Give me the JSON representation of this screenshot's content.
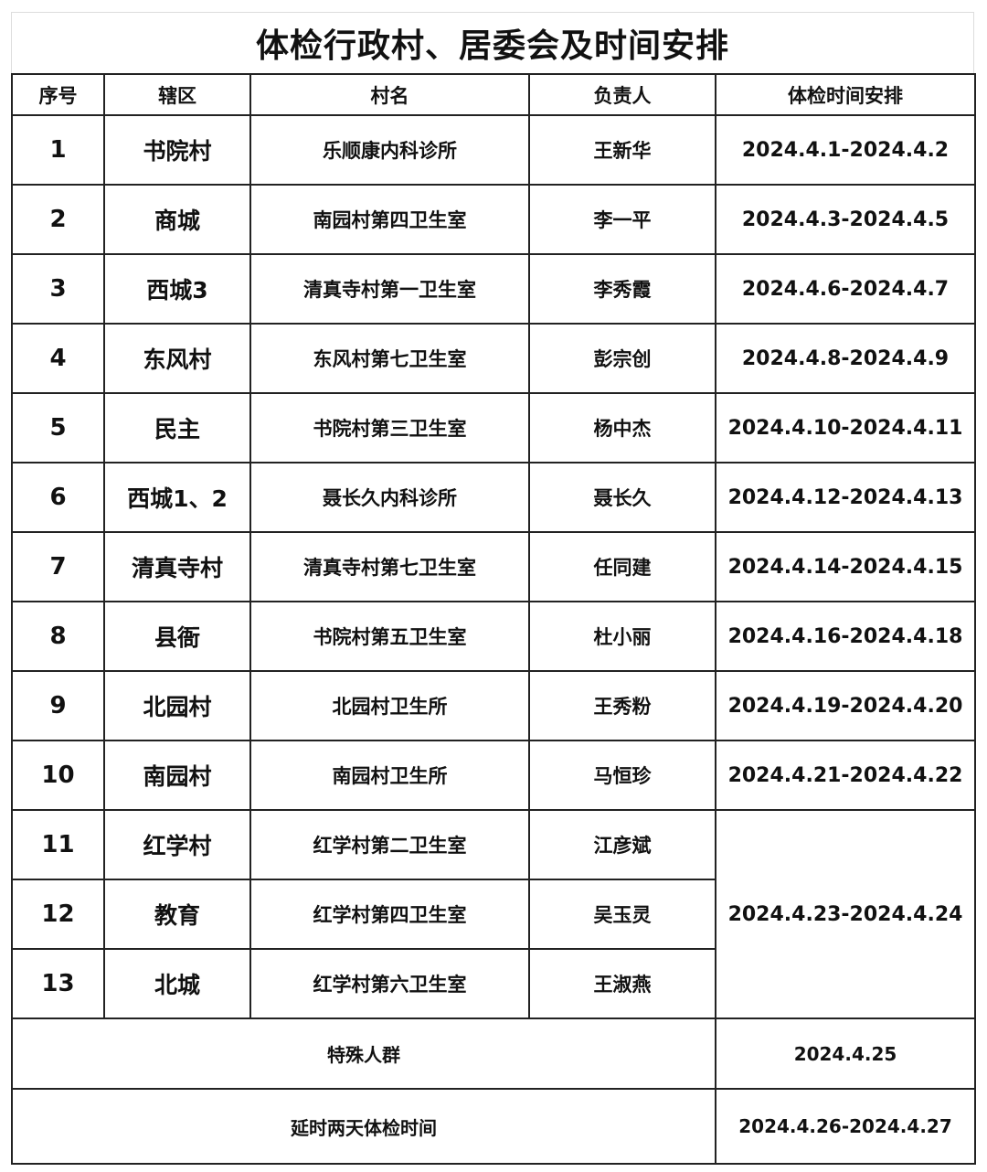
{
  "title": "体检行政村、居委会及时间安排",
  "headers": [
    "序号",
    "辖区",
    "村名",
    "负责人",
    "体检时间安排"
  ],
  "rows": [
    {
      "no": "1",
      "area": "书院村",
      "village": "乐顺康内科诊所",
      "person": "王新华",
      "date": "2024.4.1-2024.4.2"
    },
    {
      "no": "2",
      "area": "商城",
      "village": "南园村第四卫生室",
      "person": "李一平",
      "date": "2024.4.3-2024.4.5"
    },
    {
      "no": "3",
      "area": "西城3",
      "village": "清真寺村第一卫生室",
      "person": "李秀霞",
      "date": "2024.4.6-2024.4.7"
    },
    {
      "no": "4",
      "area": "东风村",
      "village": "东风村第七卫生室",
      "person": "彭宗创",
      "date": "2024.4.8-2024.4.9"
    },
    {
      "no": "5",
      "area": "民主",
      "village": "书院村第三卫生室",
      "person": "杨中杰",
      "date": "2024.4.10-2024.4.11"
    },
    {
      "no": "6",
      "area": "西城1、2",
      "village": "聂长久内科诊所",
      "person": "聂长久",
      "date": "2024.4.12-2024.4.13"
    },
    {
      "no": "7",
      "area": "清真寺村",
      "village": "清真寺村第七卫生室",
      "person": "任同建",
      "date": "2024.4.14-2024.4.15"
    },
    {
      "no": "8",
      "area": "县衙",
      "village": "书院村第五卫生室",
      "person": "杜小丽",
      "date": "2024.4.16-2024.4.18"
    },
    {
      "no": "9",
      "area": "北园村",
      "village": "北园村卫生所",
      "person": "王秀粉",
      "date": "2024.4.19-2024.4.20"
    },
    {
      "no": "10",
      "area": "南园村",
      "village": "南园村卫生所",
      "person": "马恒珍",
      "date": "2024.4.21-2024.4.22"
    },
    {
      "no": "11",
      "area": "红学村",
      "village": "红学村第二卫生室",
      "person": "江彦斌",
      "date": "2024.4.23-2024.4.24"
    },
    {
      "no": "12",
      "area": "教育",
      "village": "红学村第四卫生室",
      "person": "吴玉灵"
    },
    {
      "no": "13",
      "area": "北城",
      "village": "红学村第六卫生室",
      "person": "王淑燕"
    }
  ],
  "footer": [
    {
      "label": "特殊人群",
      "date": "2024.4.25"
    },
    {
      "label": "延时两天体检时间",
      "date": "2024.4.26-2024.4.27"
    }
  ]
}
